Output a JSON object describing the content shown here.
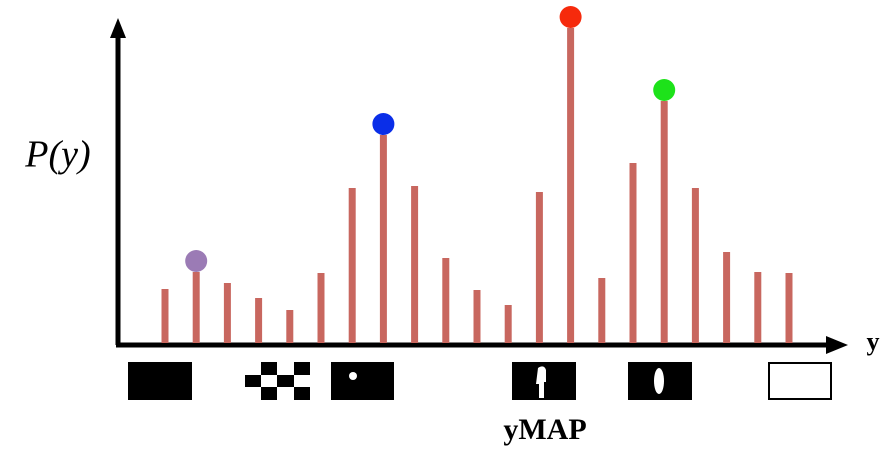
{
  "chart_data": {
    "type": "stem",
    "ylabel": "P(y)",
    "xlabel": "y",
    "annotation": "yMAP",
    "categories": [
      null,
      null,
      null,
      null,
      null,
      null,
      null,
      null,
      null,
      null,
      null,
      null,
      null,
      null,
      null,
      null,
      null,
      null,
      null,
      null,
      null
    ],
    "values": [
      56,
      73,
      62,
      47,
      35,
      72,
      157,
      210,
      159,
      87,
      55,
      40,
      153,
      317,
      67,
      182,
      244,
      157,
      93,
      73,
      72
    ],
    "color": "#c8675f",
    "ylim": [
      0,
      330
    ],
    "highlights": [
      {
        "index": 1,
        "color": "#9b7bb5"
      },
      {
        "index": 7,
        "color": "#0a2ee8"
      },
      {
        "index": 13,
        "color": "#f62a0c"
      },
      {
        "index": 16,
        "color": "#1de21a"
      }
    ]
  }
}
